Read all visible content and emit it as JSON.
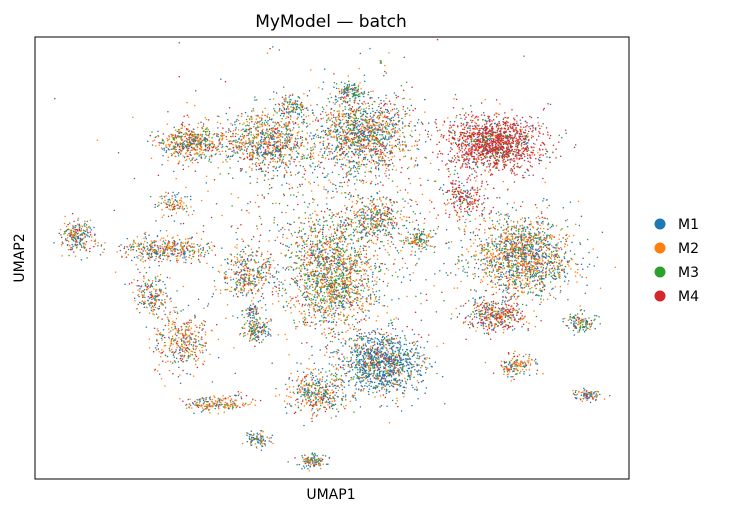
{
  "chart_data": {
    "type": "scatter",
    "title": "MyModel — batch",
    "xlabel": "UMAP1",
    "ylabel": "UMAP2",
    "xticks": [],
    "yticks": [],
    "grid": false,
    "legend_position": "right, outside plot",
    "xlim": [
      -9.3,
      11.3
    ],
    "ylim": [
      -6.3,
      11.2
    ],
    "series": [
      {
        "name": "M1",
        "color": "#1f77b4"
      },
      {
        "name": "M2",
        "color": "#ff7f0e"
      },
      {
        "name": "M3",
        "color": "#2ca02c"
      },
      {
        "name": "M4",
        "color": "#d62728"
      }
    ],
    "clusters": [
      {
        "x": 6.6,
        "y": 7.0,
        "rx": 1.45,
        "ry": 1.0,
        "n": 1400,
        "mix": [
          0.12,
          0.1,
          0.06,
          0.72
        ]
      },
      {
        "x": 5.6,
        "y": 4.9,
        "rx": 0.7,
        "ry": 0.7,
        "n": 200,
        "mix": [
          0.15,
          0.1,
          0.05,
          0.7
        ]
      },
      {
        "x": 7.6,
        "y": 2.5,
        "rx": 1.55,
        "ry": 1.4,
        "n": 1500,
        "mix": [
          0.35,
          0.38,
          0.17,
          0.1
        ]
      },
      {
        "x": 6.7,
        "y": 0.2,
        "rx": 0.9,
        "ry": 0.6,
        "n": 400,
        "mix": [
          0.25,
          0.3,
          0.1,
          0.35
        ]
      },
      {
        "x": 7.4,
        "y": -1.8,
        "rx": 0.55,
        "ry": 0.4,
        "n": 150,
        "mix": [
          0.25,
          0.45,
          0.15,
          0.15
        ]
      },
      {
        "x": 9.6,
        "y": -0.1,
        "rx": 0.45,
        "ry": 0.3,
        "n": 120,
        "mix": [
          0.35,
          0.25,
          0.3,
          0.1
        ]
      },
      {
        "x": 9.9,
        "y": -3.0,
        "rx": 0.45,
        "ry": 0.2,
        "n": 90,
        "mix": [
          0.45,
          0.3,
          0.1,
          0.15
        ]
      },
      {
        "x": 2.1,
        "y": 7.3,
        "rx": 1.5,
        "ry": 1.4,
        "n": 1200,
        "mix": [
          0.32,
          0.32,
          0.18,
          0.18
        ]
      },
      {
        "x": 1.6,
        "y": 9.0,
        "rx": 0.45,
        "ry": 0.4,
        "n": 120,
        "mix": [
          0.35,
          0.25,
          0.3,
          0.1
        ]
      },
      {
        "x": -1.3,
        "y": 7.0,
        "rx": 1.3,
        "ry": 1.0,
        "n": 800,
        "mix": [
          0.3,
          0.4,
          0.15,
          0.15
        ]
      },
      {
        "x": -0.4,
        "y": 8.4,
        "rx": 0.45,
        "ry": 0.4,
        "n": 120,
        "mix": [
          0.3,
          0.3,
          0.3,
          0.1
        ]
      },
      {
        "x": -3.9,
        "y": 7.0,
        "rx": 1.0,
        "ry": 0.6,
        "n": 500,
        "mix": [
          0.25,
          0.45,
          0.15,
          0.15
        ]
      },
      {
        "x": 1.0,
        "y": 1.8,
        "rx": 1.4,
        "ry": 2.1,
        "n": 1500,
        "mix": [
          0.25,
          0.38,
          0.25,
          0.12
        ]
      },
      {
        "x": 2.5,
        "y": 4.0,
        "rx": 0.8,
        "ry": 0.8,
        "n": 300,
        "mix": [
          0.3,
          0.3,
          0.25,
          0.15
        ]
      },
      {
        "x": 2.7,
        "y": -1.7,
        "rx": 1.35,
        "ry": 1.1,
        "n": 1200,
        "mix": [
          0.62,
          0.18,
          0.12,
          0.08
        ]
      },
      {
        "x": 0.5,
        "y": -2.9,
        "rx": 0.9,
        "ry": 0.8,
        "n": 400,
        "mix": [
          0.3,
          0.4,
          0.15,
          0.15
        ]
      },
      {
        "x": -1.9,
        "y": 1.8,
        "rx": 0.9,
        "ry": 0.9,
        "n": 350,
        "mix": [
          0.3,
          0.4,
          0.15,
          0.15
        ]
      },
      {
        "x": -1.6,
        "y": -0.4,
        "rx": 0.5,
        "ry": 0.4,
        "n": 150,
        "mix": [
          0.4,
          0.3,
          0.2,
          0.1
        ]
      },
      {
        "x": -4.8,
        "y": 2.8,
        "rx": 1.4,
        "ry": 0.45,
        "n": 400,
        "mix": [
          0.3,
          0.45,
          0.1,
          0.15
        ]
      },
      {
        "x": -5.2,
        "y": 1.0,
        "rx": 0.6,
        "ry": 0.7,
        "n": 200,
        "mix": [
          0.35,
          0.35,
          0.15,
          0.15
        ]
      },
      {
        "x": -4.2,
        "y": -0.9,
        "rx": 0.9,
        "ry": 1.0,
        "n": 350,
        "mix": [
          0.25,
          0.5,
          0.1,
          0.15
        ]
      },
      {
        "x": -4.5,
        "y": 4.6,
        "rx": 0.5,
        "ry": 0.4,
        "n": 100,
        "mix": [
          0.3,
          0.45,
          0.15,
          0.1
        ]
      },
      {
        "x": -3.0,
        "y": -3.3,
        "rx": 0.95,
        "ry": 0.3,
        "n": 200,
        "mix": [
          0.2,
          0.55,
          0.1,
          0.15
        ]
      },
      {
        "x": -1.6,
        "y": -4.7,
        "rx": 0.4,
        "ry": 0.3,
        "n": 100,
        "mix": [
          0.45,
          0.3,
          0.15,
          0.1
        ]
      },
      {
        "x": -1.8,
        "y": 0.3,
        "rx": 0.35,
        "ry": 0.3,
        "n": 60,
        "mix": [
          0.4,
          0.3,
          0.2,
          0.1
        ]
      },
      {
        "x": 0.3,
        "y": -5.6,
        "rx": 0.45,
        "ry": 0.25,
        "n": 120,
        "mix": [
          0.4,
          0.3,
          0.2,
          0.1
        ]
      },
      {
        "x": -7.8,
        "y": 3.3,
        "rx": 0.55,
        "ry": 0.55,
        "n": 220,
        "mix": [
          0.35,
          0.35,
          0.15,
          0.15
        ]
      },
      {
        "x": 4.0,
        "y": 3.2,
        "rx": 0.45,
        "ry": 0.4,
        "n": 120,
        "mix": [
          0.3,
          0.3,
          0.3,
          0.1
        ]
      },
      {
        "x": 2.7,
        "y": 10.2,
        "rx": 0.04,
        "ry": 0.04,
        "n": 4,
        "mix": [
          0.25,
          0.25,
          0.25,
          0.25
        ]
      },
      {
        "x": 1.5,
        "y": 4.5,
        "rx": 6.0,
        "ry": 4.8,
        "n": 900,
        "mix": [
          0.3,
          0.3,
          0.2,
          0.2
        ]
      }
    ]
  }
}
